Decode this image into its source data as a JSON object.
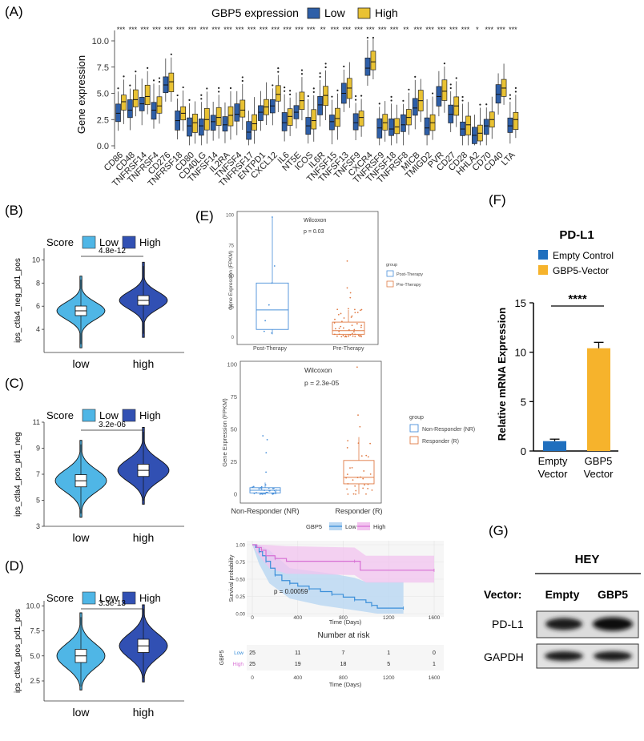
{
  "colors": {
    "low": "#2e5fa8",
    "high": "#e9c233",
    "vlow": "#4fb6e6",
    "vhigh": "#3150b3",
    "ctrl": "#1f6fbe",
    "gbp": "#f6b32c",
    "post": "#4a90d9",
    "pre": "#e07b45",
    "kmLow": "#3b8fd9",
    "kmHigh": "#d86fd4"
  },
  "panelA": {
    "label": "(A)",
    "legendTitle": "GBP5 expression",
    "legend": [
      "Low",
      "High"
    ],
    "ylabel": "Gene expression",
    "yticks": [
      "0.0",
      "2.5",
      "5.0",
      "7.5",
      "10.0"
    ],
    "genes": [
      "CD86",
      "CD48",
      "TNFRSF14",
      "TNFRSF4",
      "CD276",
      "TNFRSF18",
      "CD80",
      "CD40LG",
      "TNFSF14",
      "IL2RA",
      "TNFSF4",
      "TNFRSF17",
      "ENTPD1",
      "CXCL12",
      "IL6",
      "NT5E",
      "ICOS",
      "IL6R",
      "TNFSF15",
      "TNFSF13",
      "TNFSF9",
      "CXCR4",
      "TNFRSF9",
      "TNFSF18",
      "TNFRSF8",
      "MICB",
      "TMIGD2",
      "PVR",
      "CD27",
      "CD28",
      "HHLA2",
      "CD70",
      "CD40",
      "LTA"
    ],
    "sig": [
      "***",
      "***",
      "***",
      "***",
      "***",
      "***",
      "***",
      "***",
      "***",
      "***",
      "***",
      "***",
      "***",
      "***",
      "***",
      "***",
      "***",
      "**",
      "***",
      "***",
      "***",
      "***",
      "***",
      "***",
      "**",
      "***",
      "***",
      "***",
      "***",
      "***",
      "*",
      "***",
      "***",
      "***"
    ]
  },
  "chart_data": [
    {
      "type": "box",
      "panel": "A",
      "ylim": [
        0,
        10.5
      ],
      "series": [
        {
          "name": "Low",
          "medians": [
            3.1,
            3.4,
            4.0,
            3.4,
            5.8,
            2.4,
            1.9,
            1.9,
            2.3,
            2.0,
            3.0,
            1.3,
            3.2,
            3.8,
            2.2,
            3.2,
            1.9,
            3.9,
            2.3,
            5.0,
            2.2,
            7.4,
            1.7,
            1.6,
            2.0,
            3.6,
            1.7,
            4.7,
            3.0,
            1.6,
            1.0,
            1.9,
            4.9,
            1.9
          ]
        },
        {
          "name": "High",
          "medians": [
            4.2,
            4.4,
            4.7,
            3.8,
            6.1,
            3.1,
            2.2,
            2.5,
            2.7,
            2.9,
            3.4,
            2.1,
            3.7,
            4.9,
            2.8,
            4.3,
            2.4,
            4.8,
            2.6,
            5.5,
            2.7,
            8.0,
            2.2,
            1.8,
            2.7,
            4.3,
            2.2,
            5.2,
            3.8,
            2.0,
            1.2,
            2.5,
            5.5,
            2.5
          ]
        }
      ]
    },
    {
      "type": "violin",
      "panel": "B",
      "ylabel": "ips_ctla4_neg_pd1_pos",
      "categories": [
        "low",
        "high"
      ],
      "medians": [
        5.6,
        6.5
      ],
      "ylim": [
        2,
        11
      ],
      "pvalue": "4.8e-12"
    },
    {
      "type": "violin",
      "panel": "C",
      "ylabel": "ips_ctla4_pos_pd1_neg",
      "categories": [
        "low",
        "high"
      ],
      "medians": [
        6.5,
        7.3
      ],
      "ylim": [
        3,
        11
      ],
      "pvalue": "3.2e-06"
    },
    {
      "type": "violin",
      "panel": "D",
      "ylabel": "ips_ctla4_pos_pd1_pos",
      "categories": [
        "low",
        "high"
      ],
      "medians": [
        5.0,
        6.0
      ],
      "ylim": [
        0.5,
        10.5
      ],
      "pvalue": "3.3e-13"
    },
    {
      "type": "box",
      "panel": "E1",
      "categories": [
        "Post-Therapy",
        "Pre-Therapy"
      ],
      "medians": [
        22,
        5
      ],
      "ylabel": "Gene Expression (FPKM)",
      "ylim": [
        -5,
        100
      ],
      "test": "Wilcoxon",
      "pvalue": "p = 0.03"
    },
    {
      "type": "box",
      "panel": "E2",
      "categories": [
        "Non-Responder (NR)",
        "Responder (R)"
      ],
      "medians": [
        3,
        13
      ],
      "ylabel": "Gene Expression (FPKM)",
      "ylim": [
        -5,
        100
      ],
      "test": "Wilcoxon",
      "pvalue": "p = 2.3e-05"
    },
    {
      "type": "line",
      "panel": "E3",
      "title": "Survival probability",
      "xlabel": "Time (Days)",
      "xlim": [
        0,
        1600
      ],
      "ylim": [
        0,
        1
      ],
      "series": [
        {
          "name": "Low",
          "x": [
            0,
            30,
            60,
            90,
            120,
            160,
            200,
            260,
            330,
            400,
            500,
            600,
            700,
            800,
            900,
            1000,
            1050,
            1100,
            1330
          ],
          "y": [
            1,
            0.96,
            0.9,
            0.84,
            0.76,
            0.66,
            0.56,
            0.48,
            0.44,
            0.4,
            0.36,
            0.32,
            0.28,
            0.24,
            0.2,
            0.16,
            0.12,
            0.08,
            0.08
          ]
        },
        {
          "name": "High",
          "x": [
            0,
            40,
            80,
            120,
            200,
            300,
            900,
            950,
            1600
          ],
          "y": [
            1,
            0.96,
            0.92,
            0.84,
            0.8,
            0.76,
            0.76,
            0.63,
            0.63
          ]
        }
      ]
    }
  ],
  "panelB": {
    "label": "(B)",
    "legendTitle": "Score",
    "legend": [
      "Low",
      "High"
    ],
    "ylabel": "ips_ctla4_neg_pd1_pos",
    "yticks": [
      "4",
      "6",
      "8",
      "10"
    ],
    "categories": [
      "low",
      "high"
    ],
    "pvalue": "4.8e-12"
  },
  "panelC": {
    "label": "(C)",
    "legendTitle": "Score",
    "legend": [
      "Low",
      "High"
    ],
    "ylabel": "ips_ctla4_pos_pd1_neg",
    "yticks": [
      "3",
      "5",
      "7",
      "9",
      "11"
    ],
    "categories": [
      "low",
      "high"
    ],
    "pvalue": "3.2e-06"
  },
  "panelD": {
    "label": "(D)",
    "legendTitle": "Score",
    "legend": [
      "Low",
      "High"
    ],
    "ylabel": "ips_ctla4_pos_pd1_pos",
    "yticks": [
      "2.5",
      "5.0",
      "7.5",
      "10.0"
    ],
    "categories": [
      "low",
      "high"
    ],
    "pvalue": "3.3e-13"
  },
  "panelE": {
    "label": "(E)",
    "top": {
      "ylabel": "Gene Expression (FPKM)",
      "test": "Wilcoxon",
      "pvalue": "p = 0.03",
      "yticks": [
        "0",
        "25",
        "50",
        "75",
        "100"
      ],
      "categories": [
        "Post-Therapy",
        "Pre-Therapy"
      ],
      "legendTitle": "group",
      "legend": [
        "Post-Therapy",
        "Pre-Therapy"
      ]
    },
    "mid": {
      "ylabel": "Gene Expression (FPKM)",
      "test": "Wilcoxon",
      "pvalue": "p = 2.3e-05",
      "yticks": [
        "0",
        "25",
        "50",
        "75",
        "100"
      ],
      "categories": [
        "Non-Responder (NR)",
        "Responder (R)"
      ],
      "legendTitle": "group",
      "legend": [
        "Non-Responder (NR)",
        "Responder (R)"
      ]
    },
    "km": {
      "legendTitle": "GBP5",
      "legend": [
        "Low",
        "High"
      ],
      "ylabel": "Survival probability",
      "yticks": [
        "0.00",
        "0.25",
        "0.50",
        "0.75",
        "1.00"
      ],
      "xticks": [
        "0",
        "400",
        "800",
        "1200",
        "1600"
      ],
      "xlabel": "Time (Days)",
      "pvalue": "p = 0.00059"
    },
    "risk": {
      "title": "Number at risk",
      "ylabel": "GBP5",
      "rows": [
        {
          "name": "Low",
          "values": [
            "25",
            "11",
            "7",
            "1",
            "0"
          ]
        },
        {
          "name": "High",
          "values": [
            "25",
            "19",
            "18",
            "5",
            "1"
          ]
        }
      ],
      "xticks": [
        "0",
        "400",
        "800",
        "1200",
        "1600"
      ],
      "xlabel": "Time (Days)"
    }
  },
  "panelF": {
    "label": "(F)",
    "title": "PD-L1",
    "legend": [
      "Empty Control",
      "GBP5-Vector"
    ],
    "ylabel": "Relative mRNA Expression",
    "yticks": [
      "0",
      "5",
      "10",
      "15"
    ],
    "categories": [
      [
        "Empty",
        "Vector"
      ],
      [
        "GBP5",
        "Vector"
      ]
    ],
    "values": [
      1.0,
      10.4
    ],
    "errors": [
      0.2,
      0.6
    ],
    "sig": "****"
  },
  "panelG": {
    "label": "(G)",
    "cellline": "HEY",
    "vectorLabel": "Vector:",
    "lanes": [
      "Empty",
      "GBP5"
    ],
    "rows": [
      "PD-L1",
      "GAPDH"
    ]
  }
}
